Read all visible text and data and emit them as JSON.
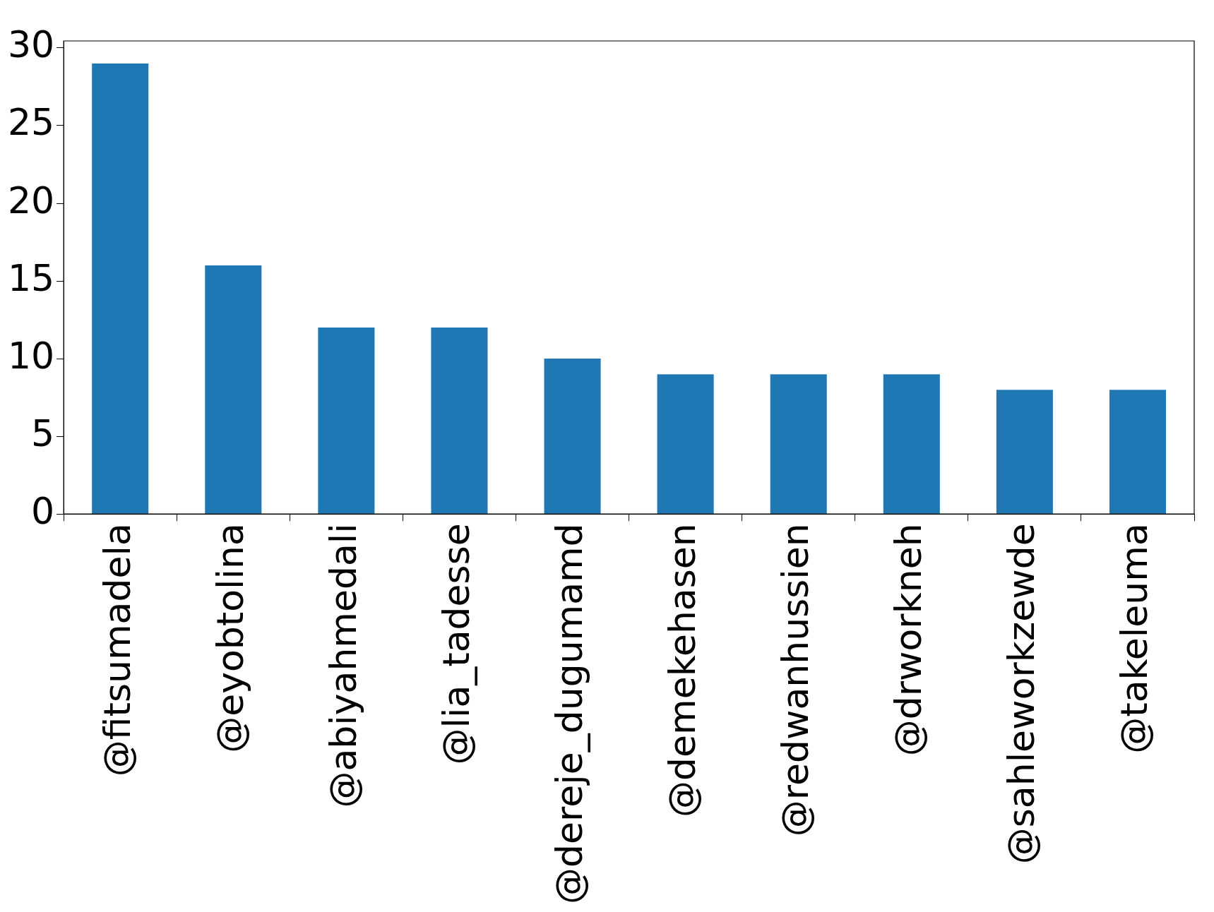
{
  "chart_data": {
    "type": "bar",
    "categories": [
      "@fitsumadela",
      "@eyobtolina",
      "@abiyahmedali",
      "@lia_tadesse",
      "@dereje_dugumamd",
      "@demekehasen",
      "@redwanhussien",
      "@drworkneh",
      "@sahleworkzewde",
      "@takeleuma"
    ],
    "values": [
      29,
      16,
      12,
      12,
      10,
      9,
      9,
      9,
      8,
      8
    ],
    "color": "#1f77b4",
    "ylim": [
      0,
      30.45
    ],
    "yticks": [
      0,
      5,
      10,
      15,
      20,
      25,
      30
    ],
    "grid": false,
    "legend": false
  }
}
